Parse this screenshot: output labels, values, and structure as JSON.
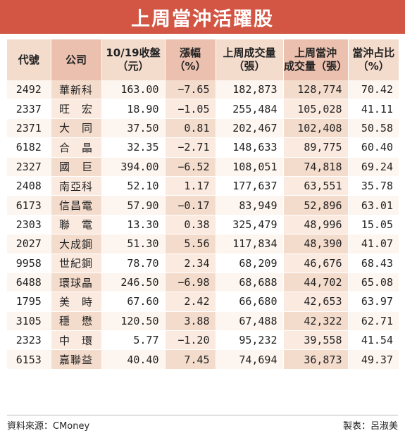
{
  "title": "上周當沖活躍股",
  "headers": [
    "代號",
    "公司",
    "10/19收盤\n（元）",
    "漲幅\n（%）",
    "上周成交量\n（張）",
    "上周當沖\n成交量（張）",
    "當沖占比\n（%）"
  ],
  "rows": [
    {
      "code": "2492",
      "company": "華新科",
      "close": "163.00",
      "change": "−7.65",
      "volume": "182,873",
      "daytrade_volume": "128,774",
      "daytrade_ratio": "70.42"
    },
    {
      "code": "2337",
      "company": "旺　宏",
      "close": "18.90",
      "change": "−1.05",
      "volume": "255,484",
      "daytrade_volume": "105,028",
      "daytrade_ratio": "41.11"
    },
    {
      "code": "2371",
      "company": "大　同",
      "close": "37.50",
      "change": "0.81",
      "volume": "202,467",
      "daytrade_volume": "102,408",
      "daytrade_ratio": "50.58"
    },
    {
      "code": "6182",
      "company": "合　晶",
      "close": "32.35",
      "change": "−2.71",
      "volume": "148,633",
      "daytrade_volume": "89,775",
      "daytrade_ratio": "60.40"
    },
    {
      "code": "2327",
      "company": "國　巨",
      "close": "394.00",
      "change": "−6.52",
      "volume": "108,051",
      "daytrade_volume": "74,818",
      "daytrade_ratio": "69.24"
    },
    {
      "code": "2408",
      "company": "南亞科",
      "close": "52.10",
      "change": "1.17",
      "volume": "177,637",
      "daytrade_volume": "63,551",
      "daytrade_ratio": "35.78"
    },
    {
      "code": "6173",
      "company": "信昌電",
      "close": "57.90",
      "change": "−0.17",
      "volume": "83,949",
      "daytrade_volume": "52,896",
      "daytrade_ratio": "63.01"
    },
    {
      "code": "2303",
      "company": "聯　電",
      "close": "13.30",
      "change": "0.38",
      "volume": "325,479",
      "daytrade_volume": "48,996",
      "daytrade_ratio": "15.05"
    },
    {
      "code": "2027",
      "company": "大成鋼",
      "close": "51.30",
      "change": "5.56",
      "volume": "117,834",
      "daytrade_volume": "48,390",
      "daytrade_ratio": "41.07"
    },
    {
      "code": "9958",
      "company": "世紀鋼",
      "close": "78.70",
      "change": "2.34",
      "volume": "68,209",
      "daytrade_volume": "46,676",
      "daytrade_ratio": "68.43"
    },
    {
      "code": "6488",
      "company": "環球晶",
      "close": "246.50",
      "change": "−6.98",
      "volume": "68,688",
      "daytrade_volume": "44,702",
      "daytrade_ratio": "65.08"
    },
    {
      "code": "1795",
      "company": "美　時",
      "close": "67.60",
      "change": "2.42",
      "volume": "66,680",
      "daytrade_volume": "42,653",
      "daytrade_ratio": "63.97"
    },
    {
      "code": "3105",
      "company": "穩　懋",
      "close": "120.50",
      "change": "3.88",
      "volume": "67,488",
      "daytrade_volume": "42,322",
      "daytrade_ratio": "62.71"
    },
    {
      "code": "2323",
      "company": "中　環",
      "close": "5.77",
      "change": "−1.20",
      "volume": "95,232",
      "daytrade_volume": "39,558",
      "daytrade_ratio": "41.54"
    },
    {
      "code": "6153",
      "company": "嘉聯益",
      "close": "40.40",
      "change": "7.45",
      "volume": "74,694",
      "daytrade_volume": "36,873",
      "daytrade_ratio": "49.37"
    }
  ],
  "footer": {
    "source": "資料來源：CMoney",
    "credit": "製表：呂淑美"
  },
  "colors": {
    "title_bg": "#d35644",
    "header_light": "#f4dccd",
    "header_dark": "#ebc0ae",
    "row_stripe_light": "#fdf5ef",
    "row_stripe_dark": "#f4dccd"
  }
}
